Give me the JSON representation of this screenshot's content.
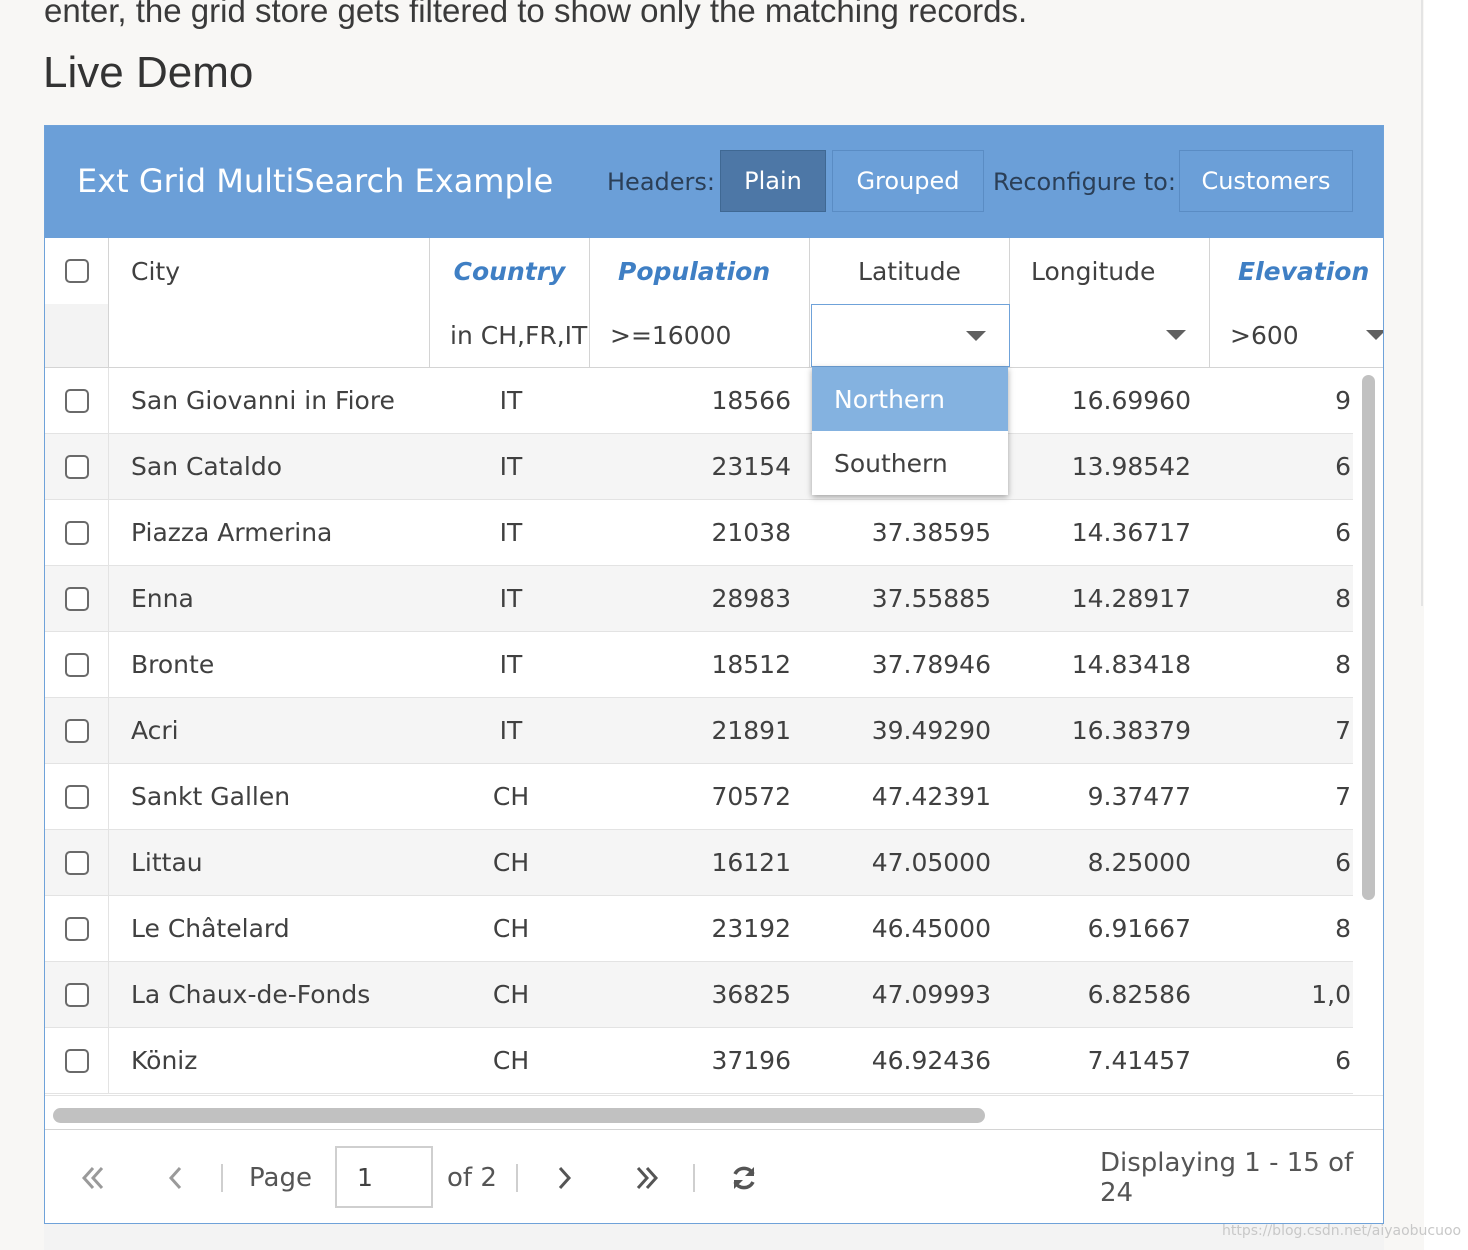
{
  "page": {
    "intro_text": "enter, the grid store gets filtered to show only the matching records.",
    "section_title": "Live Demo",
    "watermark": "https://blog.csdn.net/aiyaobucuoo"
  },
  "panel": {
    "title": "Ext Grid MultiSearch Example",
    "headers_label": "Headers:",
    "plain_label": "Plain",
    "grouped_label": "Grouped",
    "reconfigure_label": "Reconfigure to:",
    "customers_label": "Customers"
  },
  "columns": {
    "city": "City",
    "country": "Country",
    "population": "Population",
    "latitude": "Latitude",
    "longitude": "Longitude",
    "elevation": "Elevation"
  },
  "filters": {
    "city": "",
    "country": "in CH,FR,IT",
    "population": ">=16000",
    "latitude": "",
    "longitude": "",
    "elevation": ">600"
  },
  "latitude_dropdown": {
    "options": [
      "Northern",
      "Southern"
    ],
    "highlighted": "Northern"
  },
  "rows": [
    {
      "city": "San Giovanni in Fiore",
      "country": "IT",
      "population": "18566",
      "latitude": "",
      "longitude": "16.69960",
      "elevation": "9"
    },
    {
      "city": "San Cataldo",
      "country": "IT",
      "population": "23154",
      "latitude": "",
      "longitude": "13.98542",
      "elevation": "6"
    },
    {
      "city": "Piazza Armerina",
      "country": "IT",
      "population": "21038",
      "latitude": "37.38595",
      "longitude": "14.36717",
      "elevation": "6"
    },
    {
      "city": "Enna",
      "country": "IT",
      "population": "28983",
      "latitude": "37.55885",
      "longitude": "14.28917",
      "elevation": "8"
    },
    {
      "city": "Bronte",
      "country": "IT",
      "population": "18512",
      "latitude": "37.78946",
      "longitude": "14.83418",
      "elevation": "8"
    },
    {
      "city": "Acri",
      "country": "IT",
      "population": "21891",
      "latitude": "39.49290",
      "longitude": "16.38379",
      "elevation": "7"
    },
    {
      "city": "Sankt Gallen",
      "country": "CH",
      "population": "70572",
      "latitude": "47.42391",
      "longitude": "9.37477",
      "elevation": "7"
    },
    {
      "city": "Littau",
      "country": "CH",
      "population": "16121",
      "latitude": "47.05000",
      "longitude": "8.25000",
      "elevation": "6"
    },
    {
      "city": "Le Châtelard",
      "country": "CH",
      "population": "23192",
      "latitude": "46.45000",
      "longitude": "6.91667",
      "elevation": "8"
    },
    {
      "city": "La Chaux-de-Fonds",
      "country": "CH",
      "population": "36825",
      "latitude": "47.09993",
      "longitude": "6.82586",
      "elevation": "1,0"
    },
    {
      "city": "Köniz",
      "country": "CH",
      "population": "37196",
      "latitude": "46.92436",
      "longitude": "7.41457",
      "elevation": "6"
    }
  ],
  "pager": {
    "page_label": "Page",
    "page_value": "1",
    "of_label": "of 2",
    "display_info": "Displaying 1 - 15 of 24"
  },
  "icons": {
    "first": "double-chevron-left-icon",
    "prev": "chevron-left-icon",
    "next": "chevron-right-icon",
    "last": "double-chevron-right-icon",
    "refresh": "refresh-icon"
  },
  "colors": {
    "header_bg": "#6b9fd8",
    "pressed_btn": "#4d77a6",
    "filtered_header": "#3f7fc4",
    "dropdown_highlight": "#84b2e0"
  }
}
